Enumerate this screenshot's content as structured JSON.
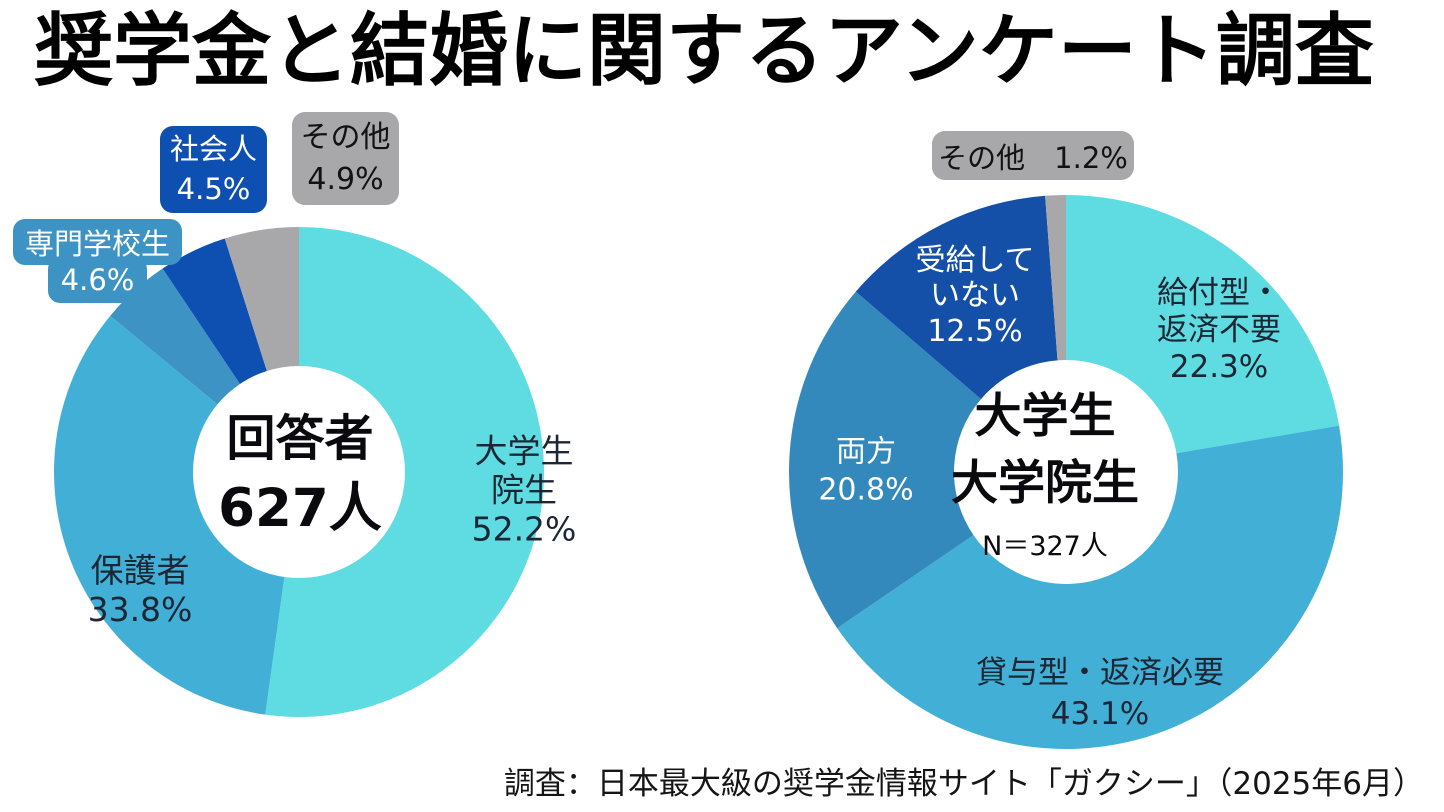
{
  "title": "奨学金と結婚に関するアンケート調査",
  "footer": "調査：日本最大級の奨学金情報サイト「ガクシー」（2025年6月）",
  "chart_data": [
    {
      "type": "pie",
      "subtype": "donut",
      "start_angle_deg": 0,
      "direction": "clockwise",
      "center": {
        "line1": "回答者",
        "line2": "627人"
      },
      "unit": "%",
      "segments": [
        {
          "label": "大学生院生",
          "lines": [
            "大学生",
            "院生",
            "52.2%"
          ],
          "value": 52.2,
          "pct": "52.2%",
          "color": "#5EDCE2",
          "label_placement": "on-slice"
        },
        {
          "label": "保護者",
          "lines": [
            "保護者",
            "33.8%"
          ],
          "value": 33.8,
          "pct": "33.8%",
          "color": "#42B0D6",
          "label_placement": "on-slice"
        },
        {
          "label": "専門学校生",
          "lines": [
            "専門学校生",
            "4.6%"
          ],
          "value": 4.6,
          "pct": "4.6%",
          "color": "#3E93C5",
          "label_placement": "callout"
        },
        {
          "label": "社会人",
          "lines": [
            "社会人",
            "4.5%"
          ],
          "value": 4.5,
          "pct": "4.5%",
          "color": "#0D50B2",
          "label_placement": "callout"
        },
        {
          "label": "その他",
          "lines": [
            "その他",
            "4.9%"
          ],
          "value": 4.9,
          "pct": "4.9%",
          "color": "#A8A8AA",
          "label_placement": "callout"
        }
      ]
    },
    {
      "type": "pie",
      "subtype": "donut",
      "start_angle_deg": 0,
      "direction": "clockwise",
      "center": {
        "line1": "大学生",
        "line2": "大学院生",
        "line3": "N＝327人"
      },
      "unit": "%",
      "segments": [
        {
          "label": "給付型・返済不要",
          "lines": [
            "給付型・",
            "返済不要",
            "22.3%"
          ],
          "value": 22.3,
          "pct": "22.3%",
          "color": "#5EDCE2",
          "label_placement": "on-slice"
        },
        {
          "label": "貸与型・返済必要",
          "lines": [
            "貸与型・返済必要",
            "43.1%"
          ],
          "value": 43.1,
          "pct": "43.1%",
          "color": "#42B0D6",
          "label_placement": "on-slice"
        },
        {
          "label": "両方",
          "lines": [
            "両方",
            "20.8%"
          ],
          "value": 20.8,
          "pct": "20.8%",
          "color": "#3489BC",
          "label_placement": "on-slice"
        },
        {
          "label": "受給していない",
          "lines": [
            "受給して",
            "いない",
            "12.5%"
          ],
          "value": 12.5,
          "pct": "12.5%",
          "color": "#1450A8",
          "label_placement": "on-slice"
        },
        {
          "label": "その他",
          "lines": [
            "その他　1.2%"
          ],
          "value": 1.2,
          "pct": "1.2%",
          "color": "#A8A8AA",
          "label_placement": "callout"
        }
      ]
    }
  ]
}
